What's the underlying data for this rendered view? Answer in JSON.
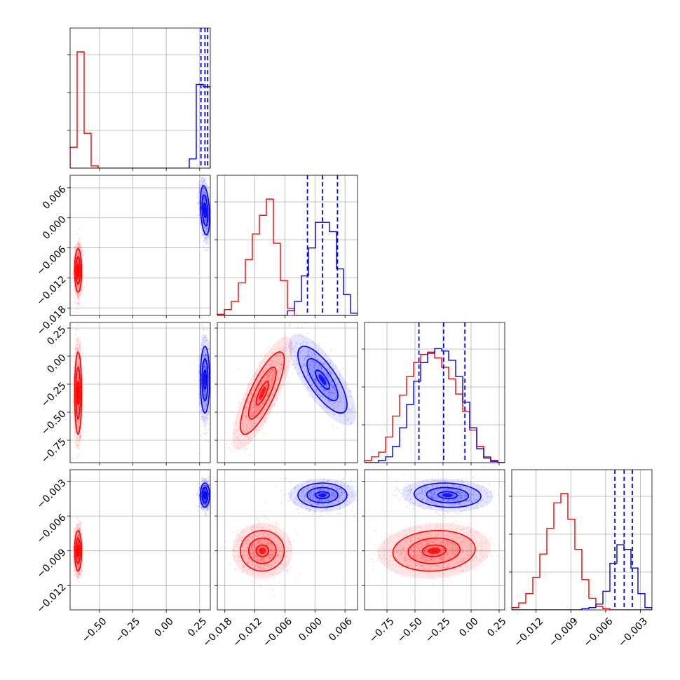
{
  "chart_data": {
    "type": "corner",
    "grid": true,
    "parameters": [
      {
        "name": "",
        "range": [
          -0.72,
          0.33
        ],
        "ticks": [
          -0.5,
          -0.25,
          0.0,
          0.25
        ],
        "tick_labels": [
          "−0.50",
          "−0.25",
          "0.00",
          "0.25"
        ]
      },
      {
        "name": "",
        "range": [
          -0.0195,
          0.0085
        ],
        "ticks": [
          -0.018,
          -0.012,
          -0.006,
          0.0,
          0.006
        ],
        "tick_labels": [
          "−0.018",
          "−0.012",
          "−0.006",
          "0.000",
          "0.006"
        ]
      },
      {
        "name": "",
        "range": [
          -0.95,
          0.3
        ],
        "ticks": [
          -0.75,
          -0.5,
          -0.25,
          0.0,
          0.25
        ],
        "tick_labels": [
          "−0.75",
          "−0.50",
          "−0.25",
          "0.00",
          "0.25"
        ]
      },
      {
        "name": "",
        "range": [
          -0.0141,
          -0.002
        ],
        "ticks": [
          -0.012,
          -0.009,
          -0.006,
          -0.003
        ],
        "tick_labels": [
          "−0.012",
          "−0.009",
          "−0.006",
          "−0.003"
        ]
      }
    ],
    "series": [
      {
        "name": "",
        "color": "#ff0000",
        "mean": [
          -0.66,
          -0.0105,
          -0.33,
          -0.009
        ],
        "sd": [
          0.015,
          0.0025,
          0.21,
          0.001
        ],
        "corr": {
          "0-1": 0.0,
          "0-2": 0.0,
          "0-3": 0.0,
          "1-2": 0.8,
          "1-3": 0.0,
          "2-3": 0.1
        }
      },
      {
        "name": "",
        "color": "#0000ff",
        "mean": [
          0.29,
          0.0015,
          -0.21,
          -0.0042
        ],
        "sd": [
          0.02,
          0.0028,
          0.17,
          0.0006
        ],
        "corr": {
          "0-1": -0.3,
          "0-2": 0.0,
          "0-3": 0.0,
          "1-2": -0.75,
          "1-3": 0.0,
          "2-3": -0.1
        }
      }
    ],
    "quantiles": {
      "color": "#0000ff",
      "values": [
        [
          0.26,
          0.29,
          0.31
        ],
        [
          -0.0015,
          0.0015,
          0.0045
        ],
        [
          -0.465,
          -0.245,
          -0.055
        ],
        [
          -0.0052,
          -0.0044,
          -0.0037
        ]
      ]
    },
    "histograms": [
      {
        "bin_edges": [
          -0.72,
          -0.6675,
          -0.615,
          -0.5625,
          -0.51,
          -0.4575,
          -0.405,
          -0.3525,
          -0.3,
          -0.2475,
          -0.195,
          -0.1425,
          -0.09,
          -0.0375,
          0.015,
          0.0675,
          0.12,
          0.1725,
          0.225,
          0.2775,
          0.33
        ],
        "series": [
          {
            "color": "#ff0000",
            "counts": [
              0.18,
              1.0,
              0.3,
              0.02,
              0,
              0,
              0,
              0,
              0,
              0,
              0,
              0,
              0,
              0,
              0,
              0,
              0,
              0,
              0,
              0
            ]
          },
          {
            "color": "#0000ff",
            "counts": [
              0,
              0,
              0,
              0,
              0,
              0,
              0,
              0,
              0,
              0,
              0,
              0,
              0,
              0,
              0,
              0,
              0,
              0.08,
              0.72,
              0.7
            ]
          }
        ]
      },
      {
        "bin_edges": [
          -0.0195,
          -0.0181,
          -0.0167,
          -0.0153,
          -0.0139,
          -0.0125,
          -0.0111,
          -0.0097,
          -0.0083,
          -0.0069,
          -0.0055,
          -0.0041,
          -0.0027,
          -0.0013,
          0.0001,
          0.0015,
          0.0029,
          0.0043,
          0.0057,
          0.0071,
          0.0085
        ],
        "series": [
          {
            "color": "#ff0000",
            "counts": [
              0.01,
              0.05,
              0.12,
              0.28,
              0.48,
              0.7,
              0.86,
              1.0,
              0.62,
              0.3,
              0.06,
              0,
              0,
              0,
              0,
              0,
              0,
              0,
              0,
              0
            ]
          },
          {
            "color": "#0000ff",
            "counts": [
              0,
              0,
              0,
              0,
              0,
              0,
              0,
              0,
              0,
              0,
              0.04,
              0.12,
              0.34,
              0.58,
              0.8,
              0.8,
              0.72,
              0.4,
              0.18,
              0.02
            ]
          }
        ]
      },
      {
        "bin_edges": [
          -0.95,
          -0.8875,
          -0.825,
          -0.7625,
          -0.7,
          -0.6375,
          -0.575,
          -0.5125,
          -0.45,
          -0.3875,
          -0.325,
          -0.2625,
          -0.2,
          -0.1375,
          -0.075,
          -0.0125,
          0.05,
          0.1125,
          0.175,
          0.2375,
          0.3
        ],
        "series": [
          {
            "color": "#ff0000",
            "counts": [
              0.02,
              0.05,
              0.09,
              0.22,
              0.4,
              0.58,
              0.74,
              0.86,
              0.93,
              0.95,
              0.9,
              0.82,
              0.72,
              0.59,
              0.44,
              0.28,
              0.14,
              0.05,
              0.02,
              0
            ]
          },
          {
            "color": "#0000ff",
            "counts": [
              0,
              0,
              0.02,
              0.05,
              0.14,
              0.3,
              0.5,
              0.7,
              0.86,
              0.94,
              0.98,
              0.96,
              0.88,
              0.74,
              0.52,
              0.3,
              0.12,
              0.04,
              0.01,
              0
            ]
          }
        ]
      },
      {
        "bin_edges": [
          -0.0141,
          -0.013495,
          -0.01289,
          -0.012285,
          -0.01168,
          -0.011075,
          -0.01047,
          -0.009865,
          -0.00926,
          -0.008655,
          -0.00805,
          -0.007445,
          -0.00684,
          -0.006235,
          -0.00563,
          -0.005025,
          -0.00442,
          -0.003815,
          -0.00321,
          -0.002605,
          -0.002
        ],
        "series": [
          {
            "color": "#ff0000",
            "counts": [
              0.02,
              0.06,
              0.14,
              0.28,
              0.48,
              0.7,
              0.92,
              1.0,
              0.78,
              0.52,
              0.26,
              0.1,
              0.03,
              0.01,
              0,
              0,
              0,
              0,
              0,
              0
            ]
          },
          {
            "color": "#0000ff",
            "counts": [
              0,
              0,
              0,
              0,
              0,
              0,
              0,
              0,
              0,
              0,
              0.01,
              0.02,
              0.05,
              0.16,
              0.4,
              0.56,
              0.52,
              0.36,
              0.14,
              0.02
            ]
          }
        ]
      }
    ]
  }
}
